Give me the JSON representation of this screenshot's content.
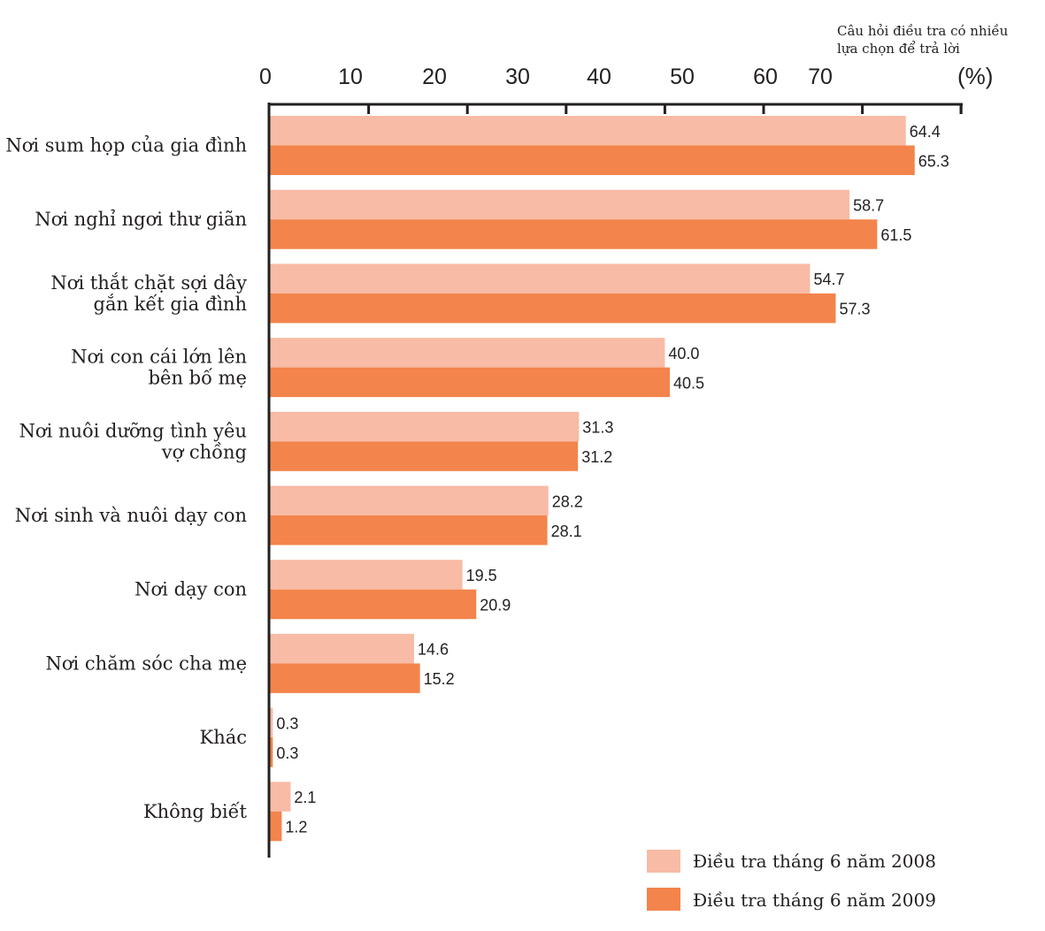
{
  "chart_data": {
    "type": "bar",
    "orientation": "horizontal",
    "note_lines": [
      "Câu hỏi điều tra có nhiều",
      "lựa chọn để trả lời"
    ],
    "unit": "(%)",
    "x_ticks": [
      "0",
      "10",
      "20",
      "30",
      "40",
      "50",
      "60",
      "70"
    ],
    "xlim": [
      0,
      70
    ],
    "categories": [
      [
        "Nơi sum họp của gia đình"
      ],
      [
        "Nơi nghỉ ngơi thư giãn"
      ],
      [
        "Nơi thắt chặt sợi dây",
        "gắn kết gia đình"
      ],
      [
        "Nơi con cái lớn lên",
        "bên bố mẹ"
      ],
      [
        "Nơi nuôi dưỡng tình yêu",
        "vợ chồng"
      ],
      [
        "Nơi sinh và nuôi dạy con"
      ],
      [
        "Nơi dạy con"
      ],
      [
        "Nơi chăm sóc cha mẹ"
      ],
      [
        "Khác"
      ],
      [
        "Không biết"
      ]
    ],
    "series": [
      {
        "name": "Điều tra tháng 6 năm 2008",
        "color": "#f8bba5",
        "values": [
          64.4,
          58.7,
          54.7,
          40.0,
          31.3,
          28.2,
          19.5,
          14.6,
          0.3,
          2.1
        ],
        "labels": [
          "64.4",
          "58.7",
          "54.7",
          "40.0",
          "31.3",
          "28.2",
          "19.5",
          "14.6",
          "0.3",
          "2.1"
        ]
      },
      {
        "name": "Điều tra tháng 6 năm 2009",
        "color": "#f3844b",
        "values": [
          65.3,
          61.5,
          57.3,
          40.5,
          31.2,
          28.1,
          20.9,
          15.2,
          0.3,
          1.2
        ],
        "labels": [
          "65.3",
          "61.5",
          "57.3",
          "40.5",
          "31.2",
          "28.1",
          "20.9",
          "15.2",
          "0.3",
          "1.2"
        ]
      }
    ],
    "legend_position": "bottom-right",
    "grid": false
  }
}
